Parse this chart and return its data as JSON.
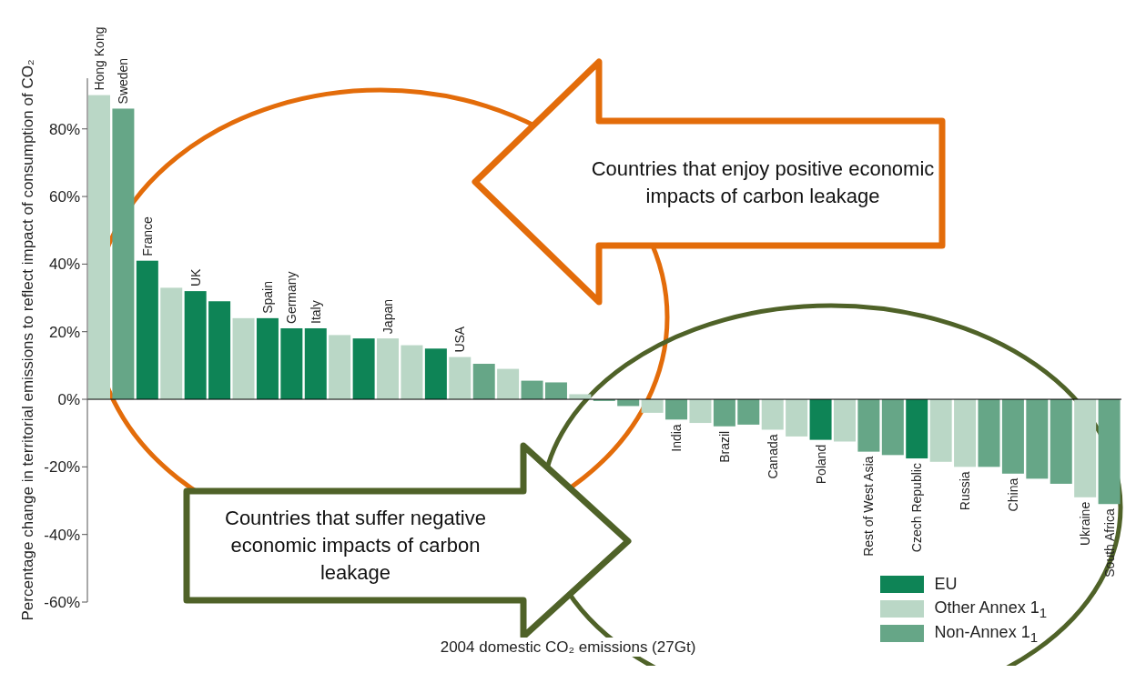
{
  "chart_data": {
    "type": "bar",
    "stacked": true,
    "ylabel": "Percentage change in territorial emissions to reflect impact of consumption of CO₂",
    "xlabel": "2004 domestic CO₂ emissions (27Gt)",
    "annotations": [
      "Countries that enjoy positive economic impacts of carbon leakage",
      "Countries that suffer negative economic impacts of carbon leakage"
    ],
    "categories": [
      "Hong Kong",
      "Sweden",
      "France",
      null,
      "UK",
      null,
      null,
      "Spain",
      "Germany",
      "Italy",
      null,
      null,
      "Japan",
      null,
      null,
      "USA",
      null,
      null,
      null,
      null,
      null,
      null,
      null,
      null,
      "India",
      null,
      "Brazil",
      null,
      "Canada",
      null,
      "Poland",
      null,
      "Rest of West Asia",
      null,
      "Czech Republic",
      null,
      "Russia",
      null,
      "China",
      null,
      null,
      "Ukraine",
      "South Africa"
    ],
    "series": [
      {
        "name": "EU",
        "color": "#0e8456",
        "values": [
          null,
          null,
          41,
          null,
          32,
          29,
          null,
          24,
          21,
          21,
          null,
          18,
          null,
          null,
          15,
          null,
          null,
          null,
          null,
          null,
          null,
          null,
          null,
          null,
          null,
          null,
          null,
          null,
          null,
          null,
          -12,
          null,
          null,
          null,
          -17.5,
          null,
          null,
          null,
          null,
          null,
          null,
          null,
          null
        ]
      },
      {
        "name": "Other Annex 1$_{1}$",
        "color": "#bad7c6",
        "values": [
          90,
          null,
          null,
          33,
          null,
          null,
          24,
          null,
          null,
          null,
          19,
          null,
          18,
          16,
          null,
          12.5,
          null,
          9,
          null,
          null,
          1.5,
          null,
          null,
          -4,
          null,
          -7,
          null,
          null,
          -9,
          -11,
          null,
          -12.5,
          null,
          null,
          null,
          -18.5,
          -20,
          null,
          null,
          null,
          null,
          -29,
          null
        ]
      },
      {
        "name": "Non-Annex 1$_{1}$",
        "color": "#66a687",
        "values": [
          null,
          86,
          null,
          null,
          null,
          null,
          null,
          null,
          null,
          null,
          null,
          null,
          null,
          null,
          null,
          null,
          10.5,
          null,
          5.5,
          5,
          null,
          -0.5,
          -2,
          null,
          -6,
          null,
          -8,
          -7.5,
          null,
          null,
          null,
          null,
          -15.5,
          -16.5,
          null,
          null,
          null,
          -20,
          -22,
          -23.5,
          -25,
          null,
          -31
        ]
      }
    ],
    "ylim": [
      -60,
      95
    ],
    "yticks": [
      {
        "value": -60,
        "label": "-60%"
      },
      {
        "value": -40,
        "label": "-40%"
      },
      {
        "value": -20,
        "label": "-20%"
      },
      {
        "value": 0,
        "label": "0%"
      },
      {
        "value": 20,
        "label": "20%"
      },
      {
        "value": 40,
        "label": "40%"
      },
      {
        "value": 60,
        "label": "60%"
      },
      {
        "value": 80,
        "label": "80%"
      }
    ],
    "ref_lines": [
      {
        "axis": "y",
        "value": 0,
        "color": "#000000"
      }
    ],
    "legend": "bottom right",
    "grid": false
  }
}
